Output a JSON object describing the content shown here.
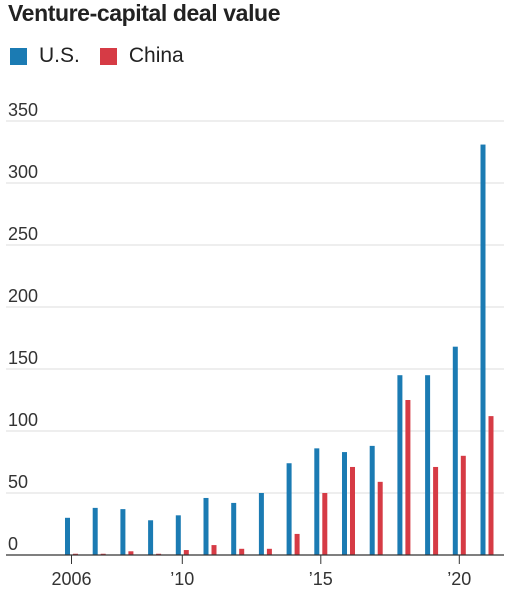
{
  "chart_data": {
    "type": "bar",
    "title": "Venture-capital deal value",
    "xlabel": "",
    "ylabel": "",
    "ylim": [
      0,
      350
    ],
    "yticks": [
      0,
      50,
      100,
      150,
      200,
      250,
      300,
      350
    ],
    "grid": true,
    "legend": "top-left",
    "categories": [
      2006,
      2007,
      2008,
      2009,
      2010,
      2011,
      2012,
      2013,
      2014,
      2015,
      2016,
      2017,
      2018,
      2019,
      2020,
      2021
    ],
    "xticks": [
      {
        "year": 2006,
        "label": "2006"
      },
      {
        "year": 2010,
        "label": "’10"
      },
      {
        "year": 2015,
        "label": "’15"
      },
      {
        "year": 2020,
        "label": "’20"
      }
    ],
    "series": [
      {
        "name": "U.S.",
        "color": "#1b7bb3",
        "values": [
          30,
          38,
          37,
          28,
          32,
          46,
          42,
          50,
          74,
          86,
          83,
          88,
          145,
          145,
          168,
          331
        ]
      },
      {
        "name": "China",
        "color": "#d63b45",
        "values": [
          1,
          1,
          3,
          1,
          4,
          8,
          5,
          5,
          17,
          50,
          71,
          59,
          125,
          71,
          80,
          112
        ]
      }
    ]
  },
  "colors": {
    "us": "#1b7bb3",
    "china": "#d63b45",
    "grid": "#dcdcdc",
    "axis": "#333333"
  }
}
